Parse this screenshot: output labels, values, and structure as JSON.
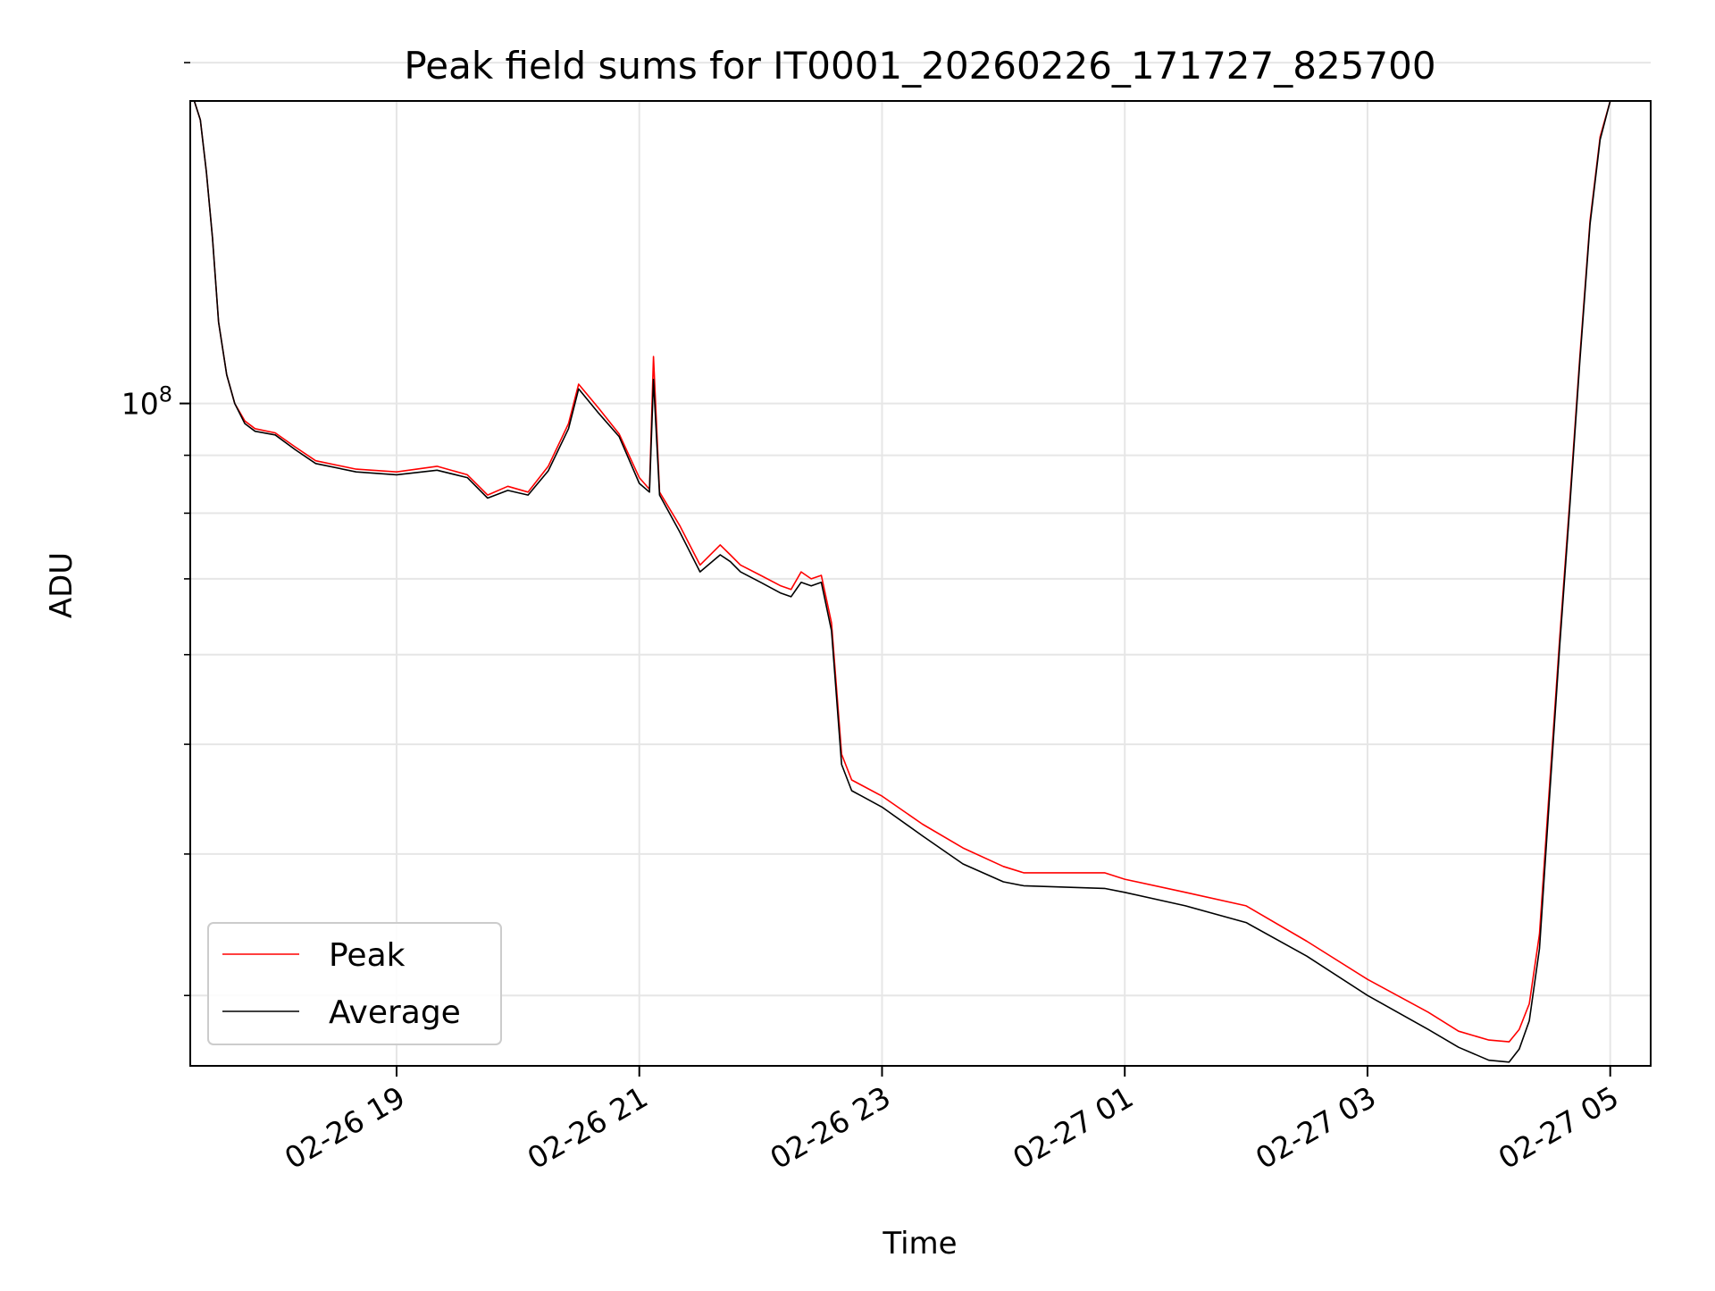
{
  "chart_data": {
    "type": "line",
    "title": "Peak field sums for IT0001_20260226_171727_825700",
    "xlabel": "Time",
    "ylabel": "ADU",
    "y_scale": "log",
    "ylim": [
      26000000,
      185000000
    ],
    "xlim": [
      "2026-02-26 17:18",
      "2026-02-27 05:20"
    ],
    "grid": true,
    "legend_position": "lower-left",
    "colors": {
      "peak": "#ff0000",
      "average": "#000000",
      "grid": "#e6e6e6"
    },
    "x_ticks": [
      {
        "t": "2026-02-26 19:00",
        "label": "02-26 19"
      },
      {
        "t": "2026-02-26 21:00",
        "label": "02-26 21"
      },
      {
        "t": "2026-02-26 23:00",
        "label": "02-26 23"
      },
      {
        "t": "2026-02-27 01:00",
        "label": "02-27 01"
      },
      {
        "t": "2026-02-27 03:00",
        "label": "02-27 03"
      },
      {
        "t": "2026-02-27 05:00",
        "label": "02-27 05"
      }
    ],
    "y_major_ticks": [
      {
        "value": 100000000,
        "base": "10",
        "exp": "8"
      }
    ],
    "y_minor_ticks": [
      30000000,
      40000000,
      50000000,
      60000000,
      70000000,
      80000000,
      90000000,
      200000000
    ],
    "series": [
      {
        "name": "Peak",
        "color": "#ff0000",
        "x": [
          "2026-02-26 17:20",
          "2026-02-26 17:23",
          "2026-02-26 17:26",
          "2026-02-26 17:29",
          "2026-02-26 17:32",
          "2026-02-26 17:36",
          "2026-02-26 17:40",
          "2026-02-26 17:45",
          "2026-02-26 17:50",
          "2026-02-26 18:00",
          "2026-02-26 18:10",
          "2026-02-26 18:20",
          "2026-02-26 18:40",
          "2026-02-26 19:00",
          "2026-02-26 19:20",
          "2026-02-26 19:35",
          "2026-02-26 19:45",
          "2026-02-26 19:55",
          "2026-02-26 20:05",
          "2026-02-26 20:15",
          "2026-02-26 20:25",
          "2026-02-26 20:30",
          "2026-02-26 20:40",
          "2026-02-26 20:50",
          "2026-02-26 21:00",
          "2026-02-26 21:05",
          "2026-02-26 21:07",
          "2026-02-26 21:10",
          "2026-02-26 21:20",
          "2026-02-26 21:30",
          "2026-02-26 21:40",
          "2026-02-26 21:45",
          "2026-02-26 21:50",
          "2026-02-26 22:00",
          "2026-02-26 22:10",
          "2026-02-26 22:15",
          "2026-02-26 22:20",
          "2026-02-26 22:25",
          "2026-02-26 22:30",
          "2026-02-26 22:35",
          "2026-02-26 22:40",
          "2026-02-26 22:45",
          "2026-02-26 22:50",
          "2026-02-26 23:00",
          "2026-02-26 23:20",
          "2026-02-26 23:40",
          "2026-02-27 00:00",
          "2026-02-27 00:10",
          "2026-02-27 00:30",
          "2026-02-27 00:50",
          "2026-02-27 01:00",
          "2026-02-27 01:30",
          "2026-02-27 02:00",
          "2026-02-27 02:30",
          "2026-02-27 03:00",
          "2026-02-27 03:30",
          "2026-02-27 03:45",
          "2026-02-27 04:00",
          "2026-02-27 04:10",
          "2026-02-27 04:15",
          "2026-02-27 04:20",
          "2026-02-27 04:25",
          "2026-02-27 04:30",
          "2026-02-27 04:35",
          "2026-02-27 04:40",
          "2026-02-27 04:45",
          "2026-02-27 04:50",
          "2026-02-27 04:55",
          "2026-02-27 05:00"
        ],
        "values": [
          185000000,
          178000000,
          160000000,
          140000000,
          118000000,
          106000000,
          100000000,
          96500000,
          95000000,
          94200000,
          91500000,
          89000000,
          87500000,
          87000000,
          88000000,
          86500000,
          83000000,
          84500000,
          83500000,
          88000000,
          96000000,
          104000000,
          99000000,
          94000000,
          86000000,
          84000000,
          110000000,
          83500000,
          78000000,
          72000000,
          75000000,
          73500000,
          72000000,
          70500000,
          69000000,
          68500000,
          71000000,
          70000000,
          70500000,
          64000000,
          49000000,
          46500000,
          46000000,
          45000000,
          42500000,
          40500000,
          39000000,
          38500000,
          38500000,
          38500000,
          38000000,
          37000000,
          36000000,
          33500000,
          31000000,
          29000000,
          27900000,
          27400000,
          27300000,
          28000000,
          29500000,
          34000000,
          46000000,
          62000000,
          82000000,
          110000000,
          145000000,
          172000000,
          185000000
        ]
      },
      {
        "name": "Average",
        "color": "#000000",
        "x": [
          "2026-02-26 17:20",
          "2026-02-26 17:23",
          "2026-02-26 17:26",
          "2026-02-26 17:29",
          "2026-02-26 17:32",
          "2026-02-26 17:36",
          "2026-02-26 17:40",
          "2026-02-26 17:45",
          "2026-02-26 17:50",
          "2026-02-26 18:00",
          "2026-02-26 18:10",
          "2026-02-26 18:20",
          "2026-02-26 18:40",
          "2026-02-26 19:00",
          "2026-02-26 19:20",
          "2026-02-26 19:35",
          "2026-02-26 19:45",
          "2026-02-26 19:55",
          "2026-02-26 20:05",
          "2026-02-26 20:15",
          "2026-02-26 20:25",
          "2026-02-26 20:30",
          "2026-02-26 20:40",
          "2026-02-26 20:50",
          "2026-02-26 21:00",
          "2026-02-26 21:05",
          "2026-02-26 21:07",
          "2026-02-26 21:10",
          "2026-02-26 21:20",
          "2026-02-26 21:30",
          "2026-02-26 21:40",
          "2026-02-26 21:45",
          "2026-02-26 21:50",
          "2026-02-26 22:00",
          "2026-02-26 22:10",
          "2026-02-26 22:15",
          "2026-02-26 22:20",
          "2026-02-26 22:25",
          "2026-02-26 22:30",
          "2026-02-26 22:35",
          "2026-02-26 22:40",
          "2026-02-26 22:45",
          "2026-02-26 22:50",
          "2026-02-26 23:00",
          "2026-02-26 23:20",
          "2026-02-26 23:40",
          "2026-02-27 00:00",
          "2026-02-27 00:10",
          "2026-02-27 00:30",
          "2026-02-27 00:50",
          "2026-02-27 01:00",
          "2026-02-27 01:30",
          "2026-02-27 02:00",
          "2026-02-27 02:30",
          "2026-02-27 03:00",
          "2026-02-27 03:30",
          "2026-02-27 03:45",
          "2026-02-27 04:00",
          "2026-02-27 04:10",
          "2026-02-27 04:15",
          "2026-02-27 04:20",
          "2026-02-27 04:25",
          "2026-02-27 04:30",
          "2026-02-27 04:35",
          "2026-02-27 04:40",
          "2026-02-27 04:45",
          "2026-02-27 04:50",
          "2026-02-27 04:55",
          "2026-02-27 05:00"
        ],
        "values": [
          185000000,
          178000000,
          160000000,
          140000000,
          118000000,
          106000000,
          100000000,
          96000000,
          94500000,
          93800000,
          91000000,
          88500000,
          87000000,
          86500000,
          87300000,
          86000000,
          82500000,
          83800000,
          83000000,
          87200000,
          95000000,
          103000000,
          98000000,
          93500000,
          85000000,
          83500000,
          105000000,
          83000000,
          77000000,
          71000000,
          73500000,
          72500000,
          71000000,
          69500000,
          68000000,
          67500000,
          69500000,
          69000000,
          69500000,
          63000000,
          48000000,
          45500000,
          45000000,
          44000000,
          41500000,
          39200000,
          37800000,
          37500000,
          37400000,
          37300000,
          37000000,
          36000000,
          34800000,
          32500000,
          30000000,
          28000000,
          27000000,
          26300000,
          26200000,
          26900000,
          28500000,
          33000000,
          45000000,
          61000000,
          81000000,
          109000000,
          144000000,
          171000000,
          185000000
        ]
      }
    ]
  }
}
